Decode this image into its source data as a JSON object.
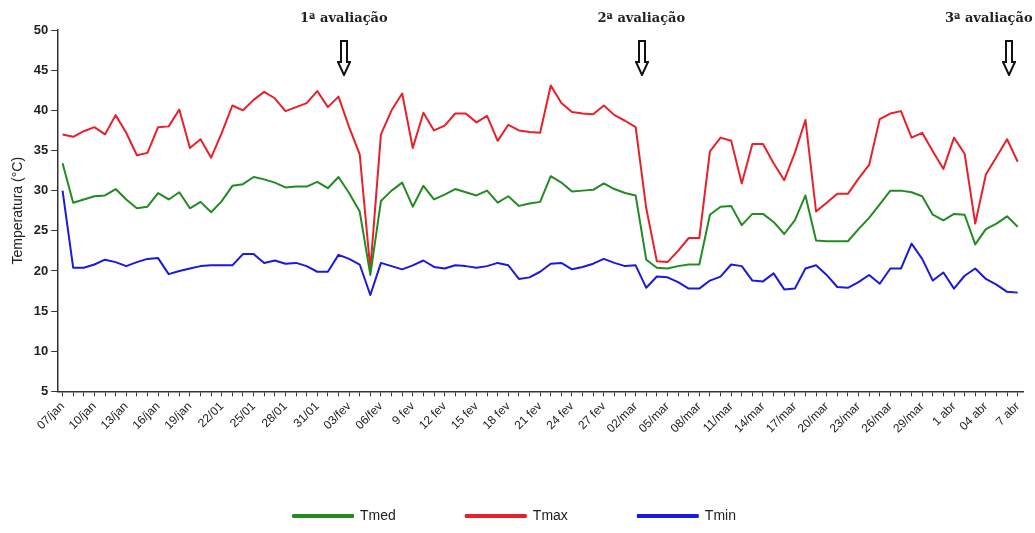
{
  "chart_data": {
    "type": "line",
    "ylabel": "Temperatura (°C)",
    "categories": [
      "07/jan",
      null,
      null,
      "10/jan",
      null,
      null,
      "13/jan",
      null,
      null,
      "16/jan",
      null,
      null,
      "19/jan",
      null,
      null,
      "22/01",
      null,
      null,
      "25/01",
      null,
      null,
      "28/01",
      null,
      null,
      "31/01",
      null,
      null,
      "03/fev",
      null,
      null,
      "06/fev",
      null,
      null,
      "9 fev",
      null,
      null,
      "12 fev",
      null,
      null,
      "15 fev",
      null,
      null,
      "18 fev",
      null,
      null,
      "21 fev",
      null,
      null,
      "24 fev",
      null,
      null,
      "27 fev",
      null,
      null,
      "02/mar",
      null,
      null,
      "05/mar",
      null,
      null,
      "08/mar",
      null,
      null,
      "11/mar",
      null,
      null,
      "14/mar",
      null,
      null,
      "17/mar",
      null,
      null,
      "20/mar",
      null,
      null,
      "23/mar",
      null,
      null,
      "26/mar",
      null,
      null,
      "29/mar",
      null,
      null,
      "1 abr",
      null,
      null,
      "04 abr",
      null,
      null,
      "7 abr"
    ],
    "series": [
      {
        "name": "Tmed",
        "color": "#228b22",
        "values": [
          33.4,
          28.5,
          28.9,
          29.3,
          29.4,
          30.2,
          28.9,
          27.8,
          28.0,
          29.7,
          28.9,
          29.8,
          27.8,
          28.6,
          27.3,
          28.7,
          30.6,
          30.8,
          31.7,
          31.4,
          31.0,
          30.4,
          30.5,
          30.5,
          31.1,
          30.3,
          31.7,
          29.7,
          27.4,
          19.5,
          28.7,
          30.0,
          31.0,
          28.0,
          30.6,
          28.9,
          29.5,
          30.2,
          29.8,
          29.4,
          30.0,
          28.5,
          29.3,
          28.1,
          28.4,
          28.6,
          31.8,
          31.0,
          29.9,
          30.0,
          30.1,
          30.9,
          30.2,
          29.7,
          29.4,
          21.4,
          20.4,
          20.3,
          20.6,
          20.8,
          20.8,
          27.0,
          28.0,
          28.1,
          25.7,
          27.1,
          27.1,
          26.1,
          24.6,
          26.3,
          29.4,
          23.8,
          23.7,
          23.7,
          23.7,
          25.2,
          26.6,
          28.3,
          30.0,
          30.0,
          29.8,
          29.3,
          27.0,
          26.3,
          27.1,
          27.0,
          23.3,
          25.2,
          25.9,
          26.8,
          25.5
        ]
      },
      {
        "name": "Tmax",
        "color": "#e8202a",
        "values": [
          37.0,
          36.7,
          37.4,
          37.9,
          37.0,
          39.4,
          37.2,
          34.4,
          34.7,
          37.9,
          38.0,
          40.1,
          35.3,
          36.4,
          34.1,
          37.2,
          40.6,
          40.0,
          41.3,
          42.3,
          41.5,
          39.9,
          40.4,
          40.9,
          42.4,
          40.4,
          41.7,
          37.9,
          34.5,
          20.2,
          37.0,
          40.0,
          42.1,
          35.3,
          39.7,
          37.5,
          38.1,
          39.6,
          39.6,
          38.5,
          39.3,
          36.2,
          38.2,
          37.5,
          37.3,
          37.2,
          43.1,
          40.9,
          39.8,
          39.6,
          39.5,
          40.6,
          39.4,
          38.7,
          37.9,
          27.8,
          21.2,
          21.1,
          22.5,
          24.1,
          24.1,
          34.9,
          36.6,
          36.2,
          30.9,
          35.8,
          35.8,
          33.4,
          31.3,
          34.7,
          38.8,
          27.4,
          28.5,
          29.6,
          29.6,
          31.5,
          33.2,
          38.9,
          39.6,
          39.9,
          36.6,
          37.2,
          34.9,
          32.7,
          36.6,
          34.6,
          25.9,
          32.0,
          34.2,
          36.4,
          33.6
        ]
      },
      {
        "name": "Tmin",
        "color": "#1a1adc",
        "values": [
          30.0,
          20.4,
          20.4,
          20.8,
          21.4,
          21.1,
          20.6,
          21.1,
          21.5,
          21.6,
          19.6,
          20.0,
          20.3,
          20.6,
          20.7,
          20.7,
          20.7,
          22.1,
          22.1,
          21.0,
          21.3,
          20.9,
          21.0,
          20.6,
          19.9,
          19.9,
          22.0,
          21.5,
          20.8,
          17.0,
          21.0,
          20.6,
          20.2,
          20.7,
          21.3,
          20.5,
          20.3,
          20.7,
          20.6,
          20.4,
          20.6,
          21.0,
          20.7,
          19.0,
          19.2,
          19.9,
          20.9,
          21.0,
          20.2,
          20.5,
          20.9,
          21.5,
          21.0,
          20.6,
          20.7,
          17.9,
          19.3,
          19.2,
          18.6,
          17.8,
          17.8,
          18.8,
          19.3,
          20.8,
          20.6,
          18.8,
          18.7,
          19.7,
          17.7,
          17.8,
          20.3,
          20.7,
          19.5,
          18.0,
          17.9,
          18.6,
          19.5,
          18.4,
          20.3,
          20.3,
          23.4,
          21.5,
          18.8,
          19.8,
          17.8,
          19.4,
          20.3,
          19.0,
          18.3,
          17.4,
          17.3
        ]
      }
    ],
    "ylim": [
      5,
      50
    ],
    "yticks": [
      5,
      10,
      15,
      20,
      25,
      30,
      35,
      40,
      45,
      50
    ],
    "grid": false,
    "legend": "bottom",
    "marker": "none",
    "line_style": "solid",
    "annotations": [
      "1ª avaliação",
      "2ª avaliação",
      "3ª avaliação"
    ]
  }
}
